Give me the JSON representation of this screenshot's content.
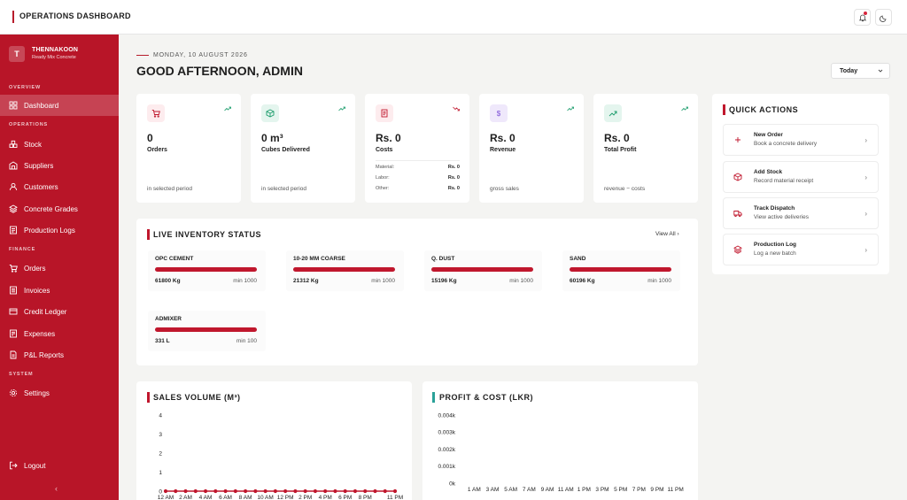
{
  "topbar": {
    "title": "OPERATIONS DASHBOARD"
  },
  "sidebar": {
    "brand": {
      "initial": "T",
      "name": "THENNAKOON",
      "subtitle": "Ready Mix Concrete"
    },
    "sections": [
      "OVERVIEW",
      "OPERATIONS",
      "FINANCE",
      "SYSTEM"
    ],
    "items": [
      {
        "label": "Dashboard",
        "icon": "dashboard-icon",
        "active": true
      },
      {
        "label": "Stock",
        "icon": "stock-icon"
      },
      {
        "label": "Suppliers",
        "icon": "suppliers-icon"
      },
      {
        "label": "Customers",
        "icon": "customers-icon"
      },
      {
        "label": "Concrete Grades",
        "icon": "layers-icon"
      },
      {
        "label": "Production Logs",
        "icon": "production-icon"
      },
      {
        "label": "Orders",
        "icon": "cart-icon"
      },
      {
        "label": "Invoices",
        "icon": "invoice-icon"
      },
      {
        "label": "Credit Ledger",
        "icon": "credit-card-icon"
      },
      {
        "label": "Expenses",
        "icon": "expenses-icon"
      },
      {
        "label": "P&L Reports",
        "icon": "report-icon"
      },
      {
        "label": "Settings",
        "icon": "gear-icon"
      }
    ],
    "logout": "Logout",
    "collapse": "‹"
  },
  "header": {
    "date": "MONDAY, 10 AUGUST 2026",
    "greeting": "GOOD AFTERNOON, ADMIN",
    "range": "Today"
  },
  "stats": [
    {
      "value": "0",
      "label": "Orders",
      "foot": "in selected period",
      "icon": "cart-icon",
      "color": "#c0172d"
    },
    {
      "value": "0 m³",
      "label": "Cubes Delivered",
      "foot": "in selected period",
      "icon": "cube-icon",
      "color": "#1a9c6b"
    },
    {
      "value": "Rs. 0",
      "label": "Costs",
      "icon": "receipt-icon",
      "color": "#c0172d",
      "breakdown": [
        {
          "k": "Material:",
          "v": "Rs. 0"
        },
        {
          "k": "Labor:",
          "v": "Rs. 0"
        },
        {
          "k": "Other:",
          "v": "Rs. 0"
        }
      ]
    },
    {
      "value": "Rs. 0",
      "label": "Revenue",
      "foot": "gross sales",
      "icon": "dollar-icon",
      "color": "#7a4bd6"
    },
    {
      "value": "Rs. 0",
      "label": "Total Profit",
      "foot": "revenue − costs",
      "icon": "trend-up-icon",
      "color": "#1a9c6b"
    }
  ],
  "inventory": {
    "title": "LIVE INVENTORY STATUS",
    "view_all": "View All",
    "items": [
      {
        "name": "OPC CEMENT",
        "qty": "61800 Kg",
        "min": "min 1000",
        "level": 1
      },
      {
        "name": "10-20 MM COARSE",
        "qty": "21312 Kg",
        "min": "min 1000",
        "level": 1
      },
      {
        "name": "Q. DUST",
        "qty": "15196 Kg",
        "min": "min 1000",
        "level": 1
      },
      {
        "name": "SAND",
        "qty": "60196 Kg",
        "min": "min 1000",
        "level": 1
      },
      {
        "name": "ADMIXER",
        "qty": "331 L",
        "min": "min 100",
        "level": 1
      }
    ]
  },
  "quick_actions": {
    "title": "QUICK ACTIONS",
    "items": [
      {
        "title": "New Order",
        "subtitle": "Book a concrete delivery",
        "icon": "plus-icon"
      },
      {
        "title": "Add Stock",
        "subtitle": "Record material receipt",
        "icon": "box-icon"
      },
      {
        "title": "Track Dispatch",
        "subtitle": "View active deliveries",
        "icon": "truck-icon"
      },
      {
        "title": "Production Log",
        "subtitle": "Log a new batch",
        "icon": "layers-icon"
      }
    ]
  },
  "chart_data": [
    {
      "type": "line",
      "title": "SALES VOLUME (M³)",
      "x": [
        "12 AM",
        "1 AM",
        "2 AM",
        "3 AM",
        "4 AM",
        "5 AM",
        "6 AM",
        "7 AM",
        "8 AM",
        "9 AM",
        "10 AM",
        "11 AM",
        "12 PM",
        "1 PM",
        "2 PM",
        "3 PM",
        "4 PM",
        "5 PM",
        "6 PM",
        "7 PM",
        "8 PM",
        "9 PM",
        "10 PM",
        "11 PM"
      ],
      "x_tick_labels": [
        "12 AM",
        "2 AM",
        "4 AM",
        "6 AM",
        "8 AM",
        "10 AM",
        "12 PM",
        "2 PM",
        "4 PM",
        "6 PM",
        "8 PM",
        "11 PM"
      ],
      "series": [
        {
          "values": [
            0,
            0,
            0,
            0,
            0,
            0,
            0,
            0,
            0,
            0,
            0,
            0,
            0,
            0,
            0,
            0,
            0,
            0,
            0,
            0,
            0,
            0,
            0,
            0
          ],
          "color": "#c0172d"
        }
      ],
      "y_ticks": [
        "0",
        "1",
        "2",
        "3",
        "4"
      ],
      "ylim": [
        0,
        4
      ]
    },
    {
      "type": "bar",
      "title": "PROFIT & COST (LKR)",
      "categories": [
        "1 AM",
        "3 AM",
        "5 AM",
        "7 AM",
        "9 AM",
        "11 AM",
        "1 PM",
        "3 PM",
        "5 PM",
        "7 PM",
        "9 PM",
        "11 PM"
      ],
      "y_ticks": [
        "0k",
        "0.001k",
        "0.002k",
        "0.003k",
        "0.004k"
      ],
      "series": [
        {
          "values": [
            0,
            0,
            0,
            0,
            0,
            0,
            0,
            0,
            0,
            0,
            0,
            0
          ]
        }
      ],
      "ylim": [
        0,
        0.004
      ]
    }
  ]
}
